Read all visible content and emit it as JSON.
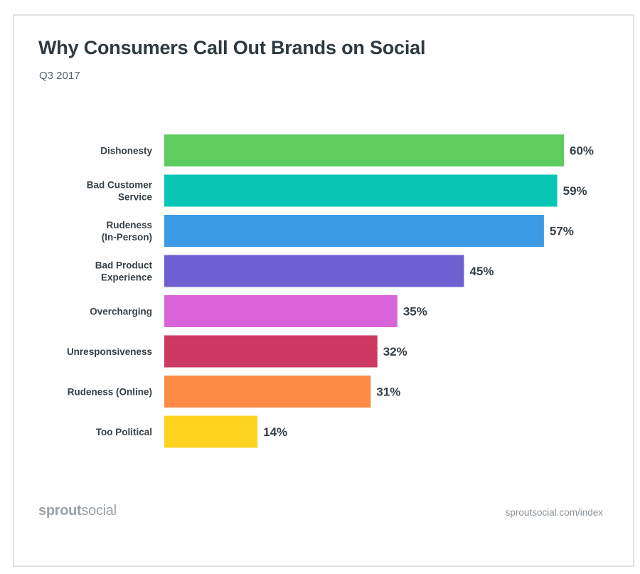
{
  "chart_data": {
    "type": "bar",
    "orientation": "horizontal",
    "title": "Why Consumers Call Out Brands on Social",
    "subtitle": "Q3 2017",
    "xlim": [
      0,
      60
    ],
    "grid": false,
    "legend": "none",
    "categories": [
      [
        "Dishonesty"
      ],
      [
        "Bad Customer",
        "Service"
      ],
      [
        "Rudeness",
        "(In-Person)"
      ],
      [
        "Bad Product",
        "Experience"
      ],
      [
        "Overcharging"
      ],
      [
        "Unresponsiveness"
      ],
      [
        "Rudeness (Online)"
      ],
      [
        "Too Political"
      ]
    ],
    "values": [
      60,
      59,
      57,
      45,
      35,
      32,
      31,
      14
    ],
    "value_labels": [
      "60%",
      "59%",
      "57%",
      "45%",
      "35%",
      "32%",
      "31%",
      "14%"
    ],
    "colors": [
      "#5ccd5e",
      "#08c6b3",
      "#3a9ae3",
      "#6e5fd2",
      "#d963d9",
      "#cc3a62",
      "#fd8b46",
      "#fed31f"
    ]
  },
  "footer": {
    "brand_bold": "sprout",
    "brand_light": "social",
    "url": "sproutsocial.com/index"
  }
}
